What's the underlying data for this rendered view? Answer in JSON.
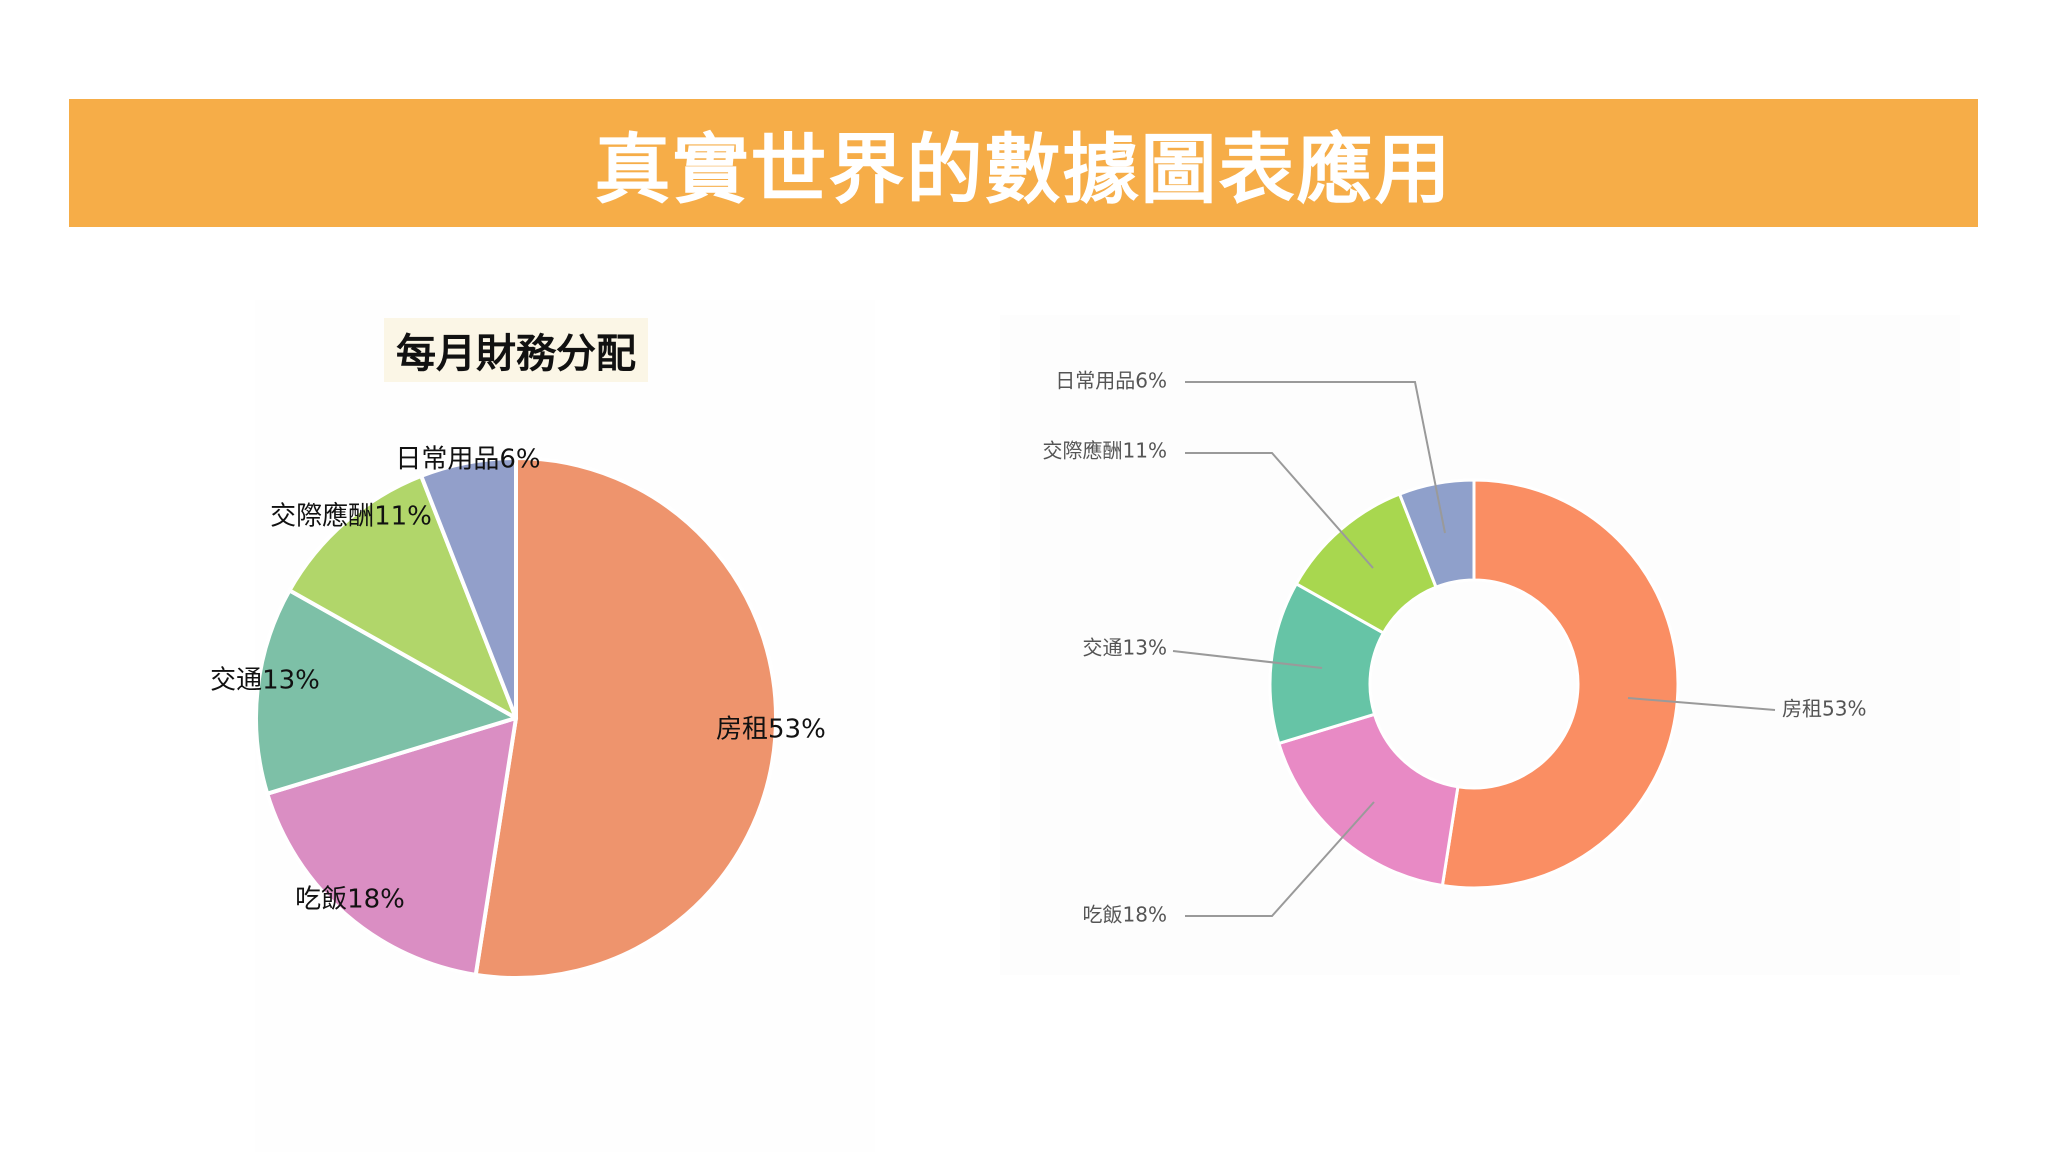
{
  "banner": {
    "title": "真實世界的數據圖表應用"
  },
  "colors": {
    "banner": "#F6AD48"
  },
  "chart_data": [
    {
      "type": "pie",
      "title": "每月財務分配",
      "categories": [
        "房租",
        "吃飯",
        "交通",
        "交際應酬",
        "日常用品"
      ],
      "values": [
        53,
        18,
        13,
        11,
        6
      ],
      "labels": [
        "房租53%",
        "吃飯18%",
        "交通13%",
        "交際應酬11%",
        "日常用品6%"
      ],
      "colors": [
        "#EE946D",
        "#DA8EC3",
        "#7DC0A7",
        "#B1D66A",
        "#929FCA"
      ]
    },
    {
      "type": "pie",
      "variant": "donut",
      "categories": [
        "房租",
        "吃飯",
        "交通",
        "交際應酬",
        "日常用品"
      ],
      "values": [
        53,
        18,
        13,
        11,
        6
      ],
      "labels": [
        "房租53%",
        "吃飯18%",
        "交通13%",
        "交際應酬11%",
        "日常用品6%"
      ],
      "colors": [
        "#FA8E63",
        "#E88AC5",
        "#66C4A6",
        "#A8D74F",
        "#8FA0CB"
      ]
    }
  ]
}
